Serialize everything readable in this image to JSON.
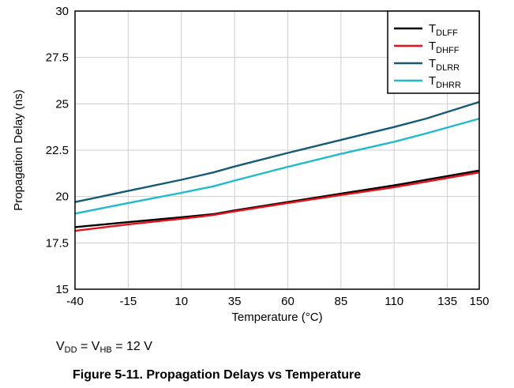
{
  "chart_data": {
    "type": "line",
    "xlabel": "Temperature (°C)",
    "ylabel": "Propagation Delay (ns)",
    "xlim": [
      -40,
      150
    ],
    "ylim": [
      15,
      30
    ],
    "xticks": [
      -40,
      -15,
      10,
      35,
      60,
      85,
      110,
      135,
      150
    ],
    "xtick_labels": [
      "-40",
      "-15",
      "10",
      "35",
      "60",
      "85",
      "110",
      "135",
      "150"
    ],
    "yticks": [
      15,
      17.5,
      20,
      22.5,
      25,
      27.5,
      30
    ],
    "ytick_labels": [
      "15",
      "17.5",
      "20",
      "22.5",
      "25",
      "27.5",
      "30"
    ],
    "grid": true,
    "legend_position": "top-right",
    "x": [
      -40,
      -15,
      10,
      25,
      35,
      60,
      85,
      110,
      125,
      150
    ],
    "series": [
      {
        "name_main": "T",
        "name_sub": "DLFF",
        "color": "#000000",
        "values": [
          18.35,
          18.62,
          18.88,
          19.05,
          19.25,
          19.7,
          20.15,
          20.6,
          20.9,
          21.4
        ]
      },
      {
        "name_main": "T",
        "name_sub": "DHFF",
        "color": "#e8111b",
        "values": [
          18.15,
          18.5,
          18.8,
          19.0,
          19.2,
          19.65,
          20.08,
          20.5,
          20.8,
          21.3
        ]
      },
      {
        "name_main": "T",
        "name_sub": "DLRR",
        "color": "#155a75",
        "values": [
          19.7,
          20.3,
          20.9,
          21.3,
          21.62,
          22.35,
          23.05,
          23.75,
          24.2,
          25.1
        ]
      },
      {
        "name_main": "T",
        "name_sub": "DHRR",
        "color": "#1fbacc",
        "values": [
          19.08,
          19.65,
          20.2,
          20.55,
          20.86,
          21.6,
          22.3,
          22.95,
          23.4,
          24.2
        ]
      }
    ]
  },
  "note": {
    "v1": "V",
    "v1_sub": "DD",
    "mid": " = V",
    "v2_sub": "HB",
    "end": " = 12 V"
  },
  "caption": "Figure 5-11. Propagation Delays vs Temperature"
}
